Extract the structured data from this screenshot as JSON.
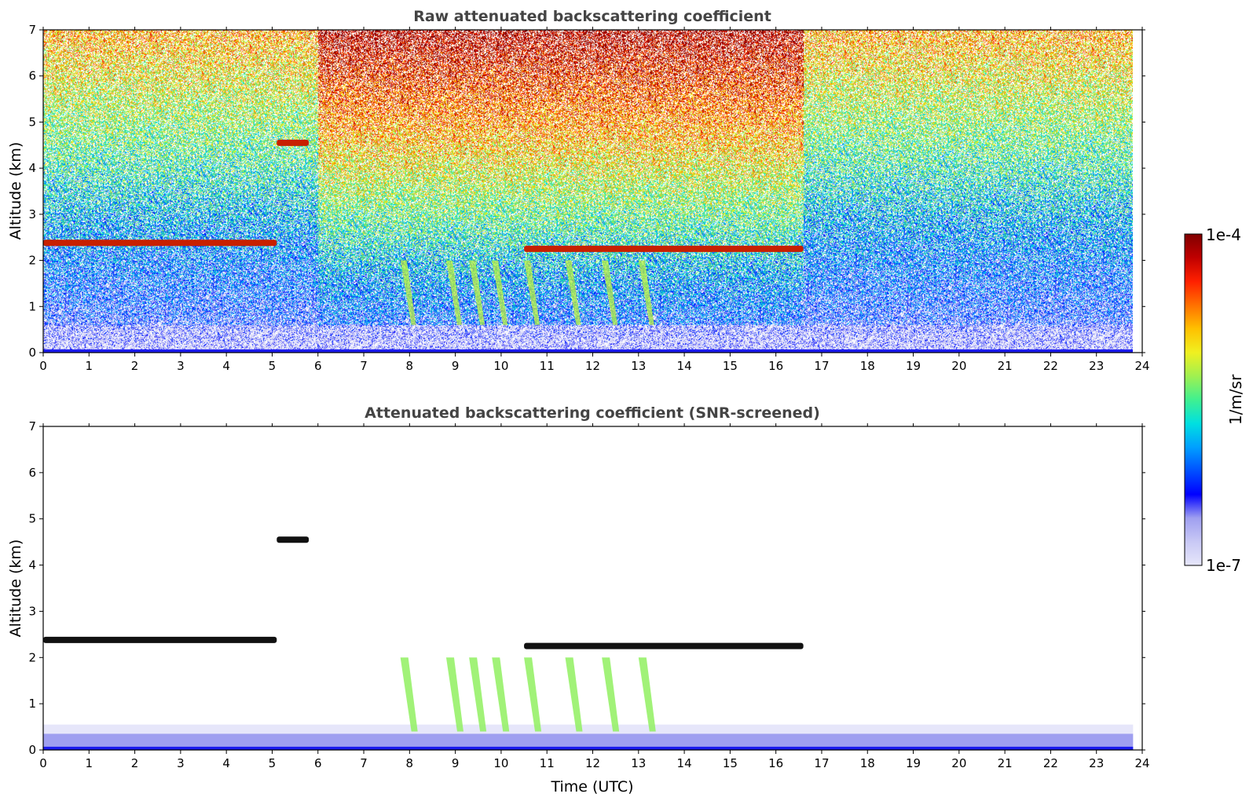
{
  "figure": {
    "colorbar": {
      "label": "1/m/sr",
      "max_label": "1e-4",
      "min_label": "1e-7",
      "scale": "log",
      "range": [
        1e-07,
        0.0001
      ],
      "colormap": [
        "#e6e6fa",
        "#c8c8f5",
        "#9f9ff0",
        "#0000ff",
        "#0050ff",
        "#00a0ff",
        "#00e0e0",
        "#40f090",
        "#a0f050",
        "#f0f020",
        "#ffc000",
        "#ff7000",
        "#ff2000",
        "#c00000",
        "#800000"
      ]
    }
  },
  "chart_data": [
    {
      "type": "heatmap",
      "title": "Raw attenuated backscattering coefficient",
      "xlabel": "",
      "ylabel": "Altitude (km)",
      "xlim": [
        0,
        24
      ],
      "ylim": [
        0,
        7
      ],
      "x_ticks": [
        "0",
        "1",
        "2",
        "3",
        "4",
        "5",
        "6",
        "7",
        "8",
        "9",
        "10",
        "11",
        "12",
        "13",
        "14",
        "15",
        "16",
        "17",
        "18",
        "19",
        "20",
        "21",
        "22",
        "23",
        "24"
      ],
      "y_ticks": [
        "0",
        "1",
        "2",
        "3",
        "4",
        "5",
        "6",
        "7"
      ],
      "data_coverage_hours": [
        0,
        23.8
      ],
      "cloud_layers": [
        {
          "t_start": 0.0,
          "t_end": 5.1,
          "altitude_km": 2.38
        },
        {
          "t_start": 10.5,
          "t_end": 16.6,
          "altitude_km": 2.25
        },
        {
          "t_start": 5.1,
          "t_end": 5.8,
          "altitude_km": 4.55
        }
      ],
      "precipitation_streaks_hours": [
        7.8,
        8.8,
        9.3,
        9.8,
        10.5,
        11.4,
        12.2,
        13.0
      ],
      "noise_regime_change_hours": [
        6.0,
        16.6
      ]
    },
    {
      "type": "heatmap",
      "title": "Attenuated backscattering coefficient (SNR-screened)",
      "xlabel": "Time (UTC)",
      "ylabel": "Altitude (km)",
      "xlim": [
        0,
        24
      ],
      "ylim": [
        0,
        7
      ],
      "x_ticks": [
        "0",
        "1",
        "2",
        "3",
        "4",
        "5",
        "6",
        "7",
        "8",
        "9",
        "10",
        "11",
        "12",
        "13",
        "14",
        "15",
        "16",
        "17",
        "18",
        "19",
        "20",
        "21",
        "22",
        "23",
        "24"
      ],
      "y_ticks": [
        "0",
        "1",
        "2",
        "3",
        "4",
        "5",
        "6",
        "7"
      ],
      "data_coverage_hours": [
        0,
        23.8
      ],
      "cloud_layers": [
        {
          "t_start": 0.0,
          "t_end": 5.1,
          "altitude_km": 2.38
        },
        {
          "t_start": 10.5,
          "t_end": 16.6,
          "altitude_km": 2.25
        },
        {
          "t_start": 5.1,
          "t_end": 5.8,
          "altitude_km": 4.55
        }
      ],
      "boundary_layer_top_km": 0.55
    }
  ]
}
